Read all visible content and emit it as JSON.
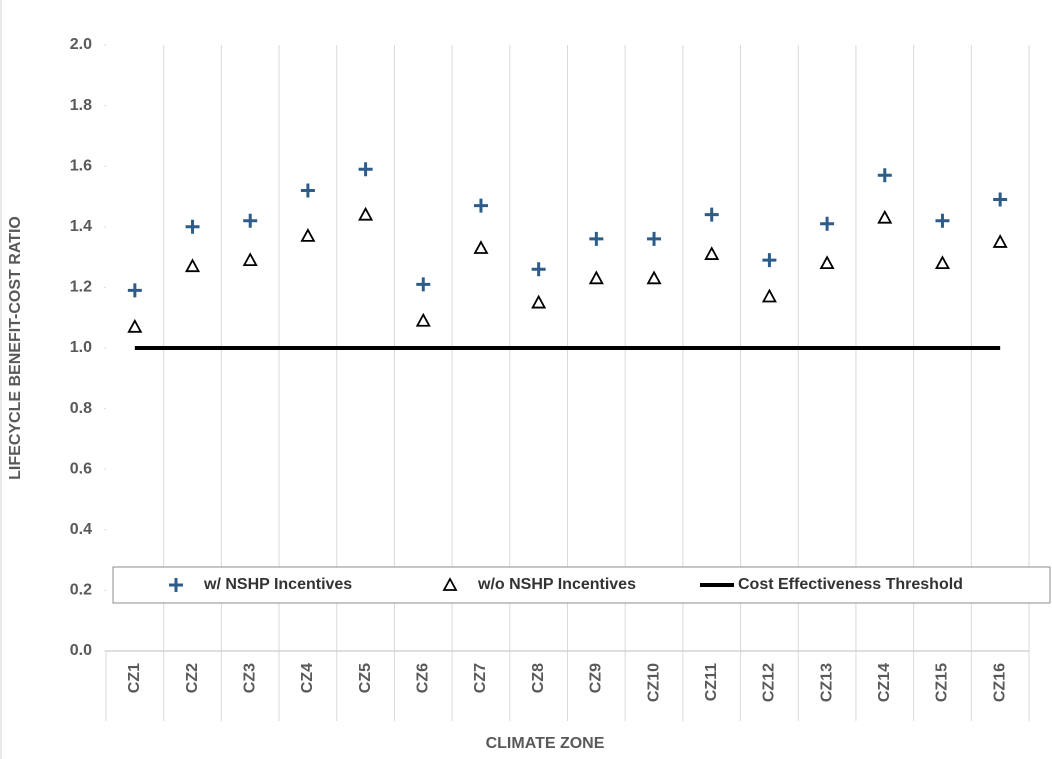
{
  "chart_data": {
    "type": "scatter",
    "x_label": "CLIMATE ZONE",
    "y_label": "LIFECYCLE BENEFIT-COST RATIO",
    "categories": [
      "CZ1",
      "CZ2",
      "CZ3",
      "CZ4",
      "CZ5",
      "CZ6",
      "CZ7",
      "CZ8",
      "CZ9",
      "CZ10",
      "CZ11",
      "CZ12",
      "CZ13",
      "CZ14",
      "CZ15",
      "CZ16"
    ],
    "series": [
      {
        "name": "w/ NSHP Incentives",
        "marker": "plus",
        "color": "#2e5c8a",
        "values": [
          1.19,
          1.4,
          1.42,
          1.52,
          1.59,
          1.21,
          1.47,
          1.26,
          1.36,
          1.36,
          1.44,
          1.29,
          1.41,
          1.57,
          1.42,
          1.49
        ]
      },
      {
        "name": "w/o NSHP Incentives",
        "marker": "triangle",
        "color": "#000000",
        "values": [
          1.07,
          1.27,
          1.29,
          1.37,
          1.44,
          1.09,
          1.33,
          1.15,
          1.23,
          1.23,
          1.31,
          1.17,
          1.28,
          1.43,
          1.28,
          1.35
        ]
      },
      {
        "name": "Cost Effectiveness Threshold",
        "marker": "line",
        "color": "#000000",
        "values": [
          1.0,
          1.0,
          1.0,
          1.0,
          1.0,
          1.0,
          1.0,
          1.0,
          1.0,
          1.0,
          1.0,
          1.0,
          1.0,
          1.0,
          1.0,
          1.0
        ]
      }
    ],
    "ylim": [
      0,
      2
    ],
    "yticks": [
      {
        "value": 0,
        "label": "0.0"
      },
      0.2,
      0.4,
      0.6,
      0.8,
      {
        "value": 1,
        "label": "1.0"
      },
      1.2,
      1.4,
      1.6,
      1.8,
      {
        "value": 2,
        "label": "2.0"
      }
    ],
    "grid": "vertical",
    "legend": "lower-inside"
  }
}
